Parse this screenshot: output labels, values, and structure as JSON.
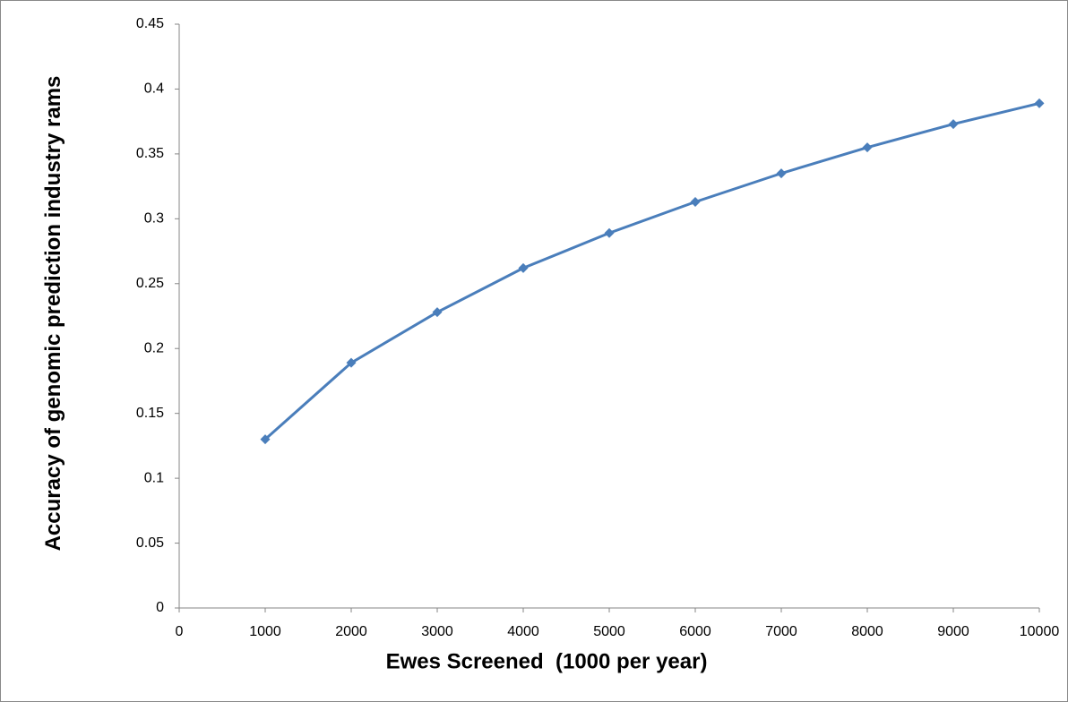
{
  "chart_data": {
    "type": "line",
    "xlabel": "Ewes Screened  (1000 per year)",
    "ylabel": "Accuracy of genomic prediction industry rams",
    "x": [
      1000,
      2000,
      3000,
      4000,
      5000,
      6000,
      7000,
      8000,
      9000,
      10000
    ],
    "series": [
      {
        "color": "#4a7ebb",
        "values": [
          0.13,
          0.189,
          0.228,
          0.262,
          0.289,
          0.313,
          0.335,
          0.355,
          0.373,
          0.389
        ]
      }
    ],
    "xlim": [
      0,
      10000
    ],
    "xticks": [
      0,
      1000,
      2000,
      3000,
      4000,
      5000,
      6000,
      7000,
      8000,
      9000,
      10000
    ],
    "ylim": [
      0,
      0.45
    ],
    "yticks": [
      0,
      0.05,
      0.1,
      0.15,
      0.2,
      0.25,
      0.3,
      0.35,
      0.4,
      0.45
    ],
    "grid": false
  }
}
